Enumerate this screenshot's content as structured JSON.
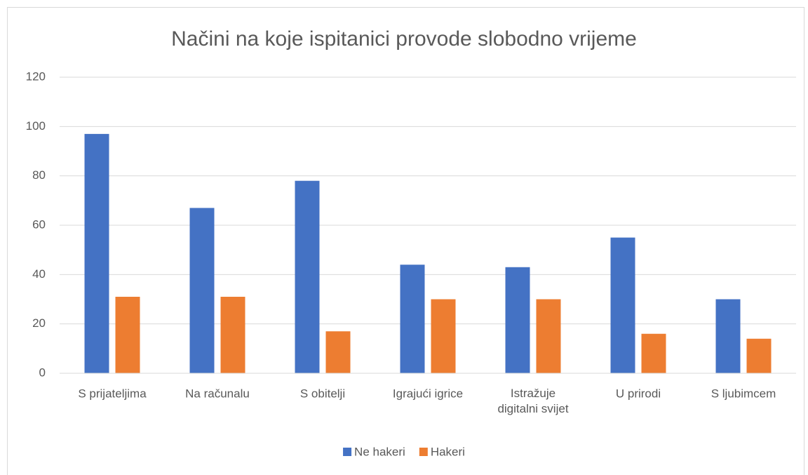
{
  "chart_data": {
    "type": "bar",
    "title": "Načini na koje ispitanici provode slobodno vrijeme",
    "categories": [
      "S prijateljima",
      "Na računalu",
      "S obitelji",
      "Igrajući igrice",
      "Istražuje digitalni svijet",
      "U prirodi",
      "S ljubimcem"
    ],
    "series": [
      {
        "name": "Ne hakeri",
        "color": "#4472c4",
        "values": [
          97,
          67,
          78,
          44,
          43,
          55,
          30
        ]
      },
      {
        "name": "Hakeri",
        "color": "#ed7d31",
        "values": [
          31,
          31,
          17,
          30,
          30,
          16,
          14
        ]
      }
    ],
    "ylim": [
      0,
      120
    ],
    "yticks": [
      0,
      20,
      40,
      60,
      80,
      100,
      120
    ],
    "grid": true,
    "legend": "bottom"
  }
}
